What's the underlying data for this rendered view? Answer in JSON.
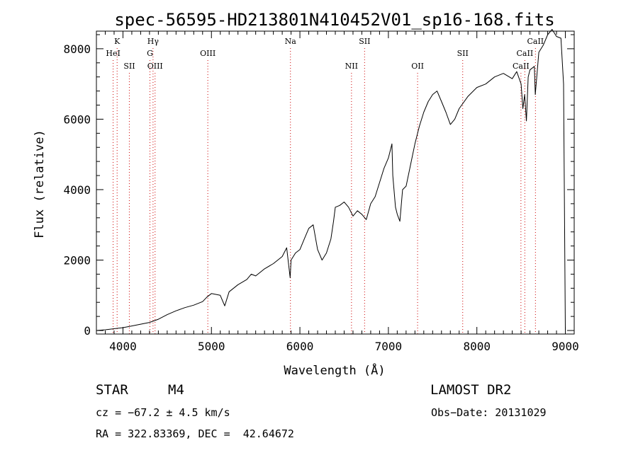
{
  "chart_data": {
    "type": "line",
    "title": "spec-56595-HD213801N410452V01_sp16-168.fits",
    "xlabel": "Wavelength (Å)",
    "ylabel": "Flux (relative)",
    "xlim": [
      3700,
      9100
    ],
    "ylim": [
      -100,
      8500
    ],
    "xticks": [
      4000,
      5000,
      6000,
      7000,
      8000,
      9000
    ],
    "yticks": [
      0,
      2000,
      4000,
      6000,
      8000
    ],
    "line_color": "#000000",
    "marker_color": "#cc0000",
    "spectral_lines": [
      {
        "label": "K",
        "wavelength": 3934,
        "row": 1
      },
      {
        "label": "HeI",
        "wavelength": 3889,
        "row": 2
      },
      {
        "label": "SII",
        "wavelength": 4072,
        "row": 3
      },
      {
        "label": "Hγ",
        "wavelength": 4340,
        "row": 1
      },
      {
        "label": "G",
        "wavelength": 4305,
        "row": 2
      },
      {
        "label": "OIII",
        "wavelength": 4363,
        "row": 3
      },
      {
        "label": "OIII",
        "wavelength": 4959,
        "row": 2
      },
      {
        "label": "Na",
        "wavelength": 5893,
        "row": 1
      },
      {
        "label": "SII",
        "wavelength": 6731,
        "row": 1
      },
      {
        "label": "NII",
        "wavelength": 6583,
        "row": 3
      },
      {
        "label": "OII",
        "wavelength": 7330,
        "row": 3
      },
      {
        "label": "SII",
        "wavelength": 7840,
        "row": 2
      },
      {
        "label": "CaII",
        "wavelength": 8662,
        "row": 1
      },
      {
        "label": "CaII",
        "wavelength": 8542,
        "row": 2
      },
      {
        "label": "CaII",
        "wavelength": 8498,
        "row": 3
      }
    ],
    "series": [
      {
        "x": [
          3700,
          3800,
          3900,
          4000,
          4100,
          4200,
          4300,
          4400,
          4500,
          4600,
          4700,
          4800,
          4900,
          4950,
          5000,
          5100,
          5150,
          5200,
          5300,
          5400,
          5450,
          5500,
          5600,
          5700,
          5800,
          5850,
          5890,
          5900,
          5950,
          6000,
          6050,
          6100,
          6150,
          6200,
          6250,
          6300,
          6350,
          6380,
          6400,
          6450,
          6500,
          6550,
          6600,
          6650,
          6700,
          6750,
          6800,
          6850,
          6900,
          6950,
          7000,
          7040,
          7050,
          7080,
          7100,
          7130,
          7160,
          7200,
          7250,
          7300,
          7350,
          7400,
          7450,
          7500,
          7550,
          7600,
          7650,
          7700,
          7750,
          7800,
          7900,
          8000,
          8100,
          8200,
          8300,
          8400,
          8450,
          8500,
          8520,
          8540,
          8560,
          8580,
          8600,
          8650,
          8660,
          8700,
          8750,
          8800,
          8850,
          8900,
          8950,
          8980,
          9000
        ],
        "y": [
          0,
          20,
          50,
          80,
          130,
          180,
          230,
          320,
          450,
          560,
          650,
          720,
          820,
          950,
          1050,
          1000,
          700,
          1100,
          1300,
          1450,
          1600,
          1550,
          1750,
          1900,
          2100,
          2350,
          1500,
          2000,
          2200,
          2300,
          2600,
          2900,
          3000,
          2300,
          2000,
          2200,
          2600,
          3100,
          3500,
          3550,
          3650,
          3500,
          3250,
          3400,
          3300,
          3150,
          3600,
          3800,
          4200,
          4600,
          4900,
          5300,
          4400,
          3500,
          3300,
          3100,
          4000,
          4100,
          4700,
          5300,
          5800,
          6200,
          6500,
          6700,
          6800,
          6500,
          6200,
          5850,
          6000,
          6300,
          6650,
          6900,
          7000,
          7200,
          7300,
          7150,
          7350,
          7000,
          6300,
          6700,
          5950,
          7200,
          7400,
          7500,
          6700,
          7900,
          8100,
          8400,
          8550,
          8350,
          8300,
          7000,
          0
        ]
      }
    ]
  },
  "info": {
    "obj_class": "STAR",
    "obj_type": "M4",
    "survey": "LAMOST DR2",
    "cz": "cz = −67.2 ± 4.5 km/s",
    "obs_date": "Obs−Date: 20131029",
    "radec": "RA = 322.83369, DEC =  42.64672"
  }
}
